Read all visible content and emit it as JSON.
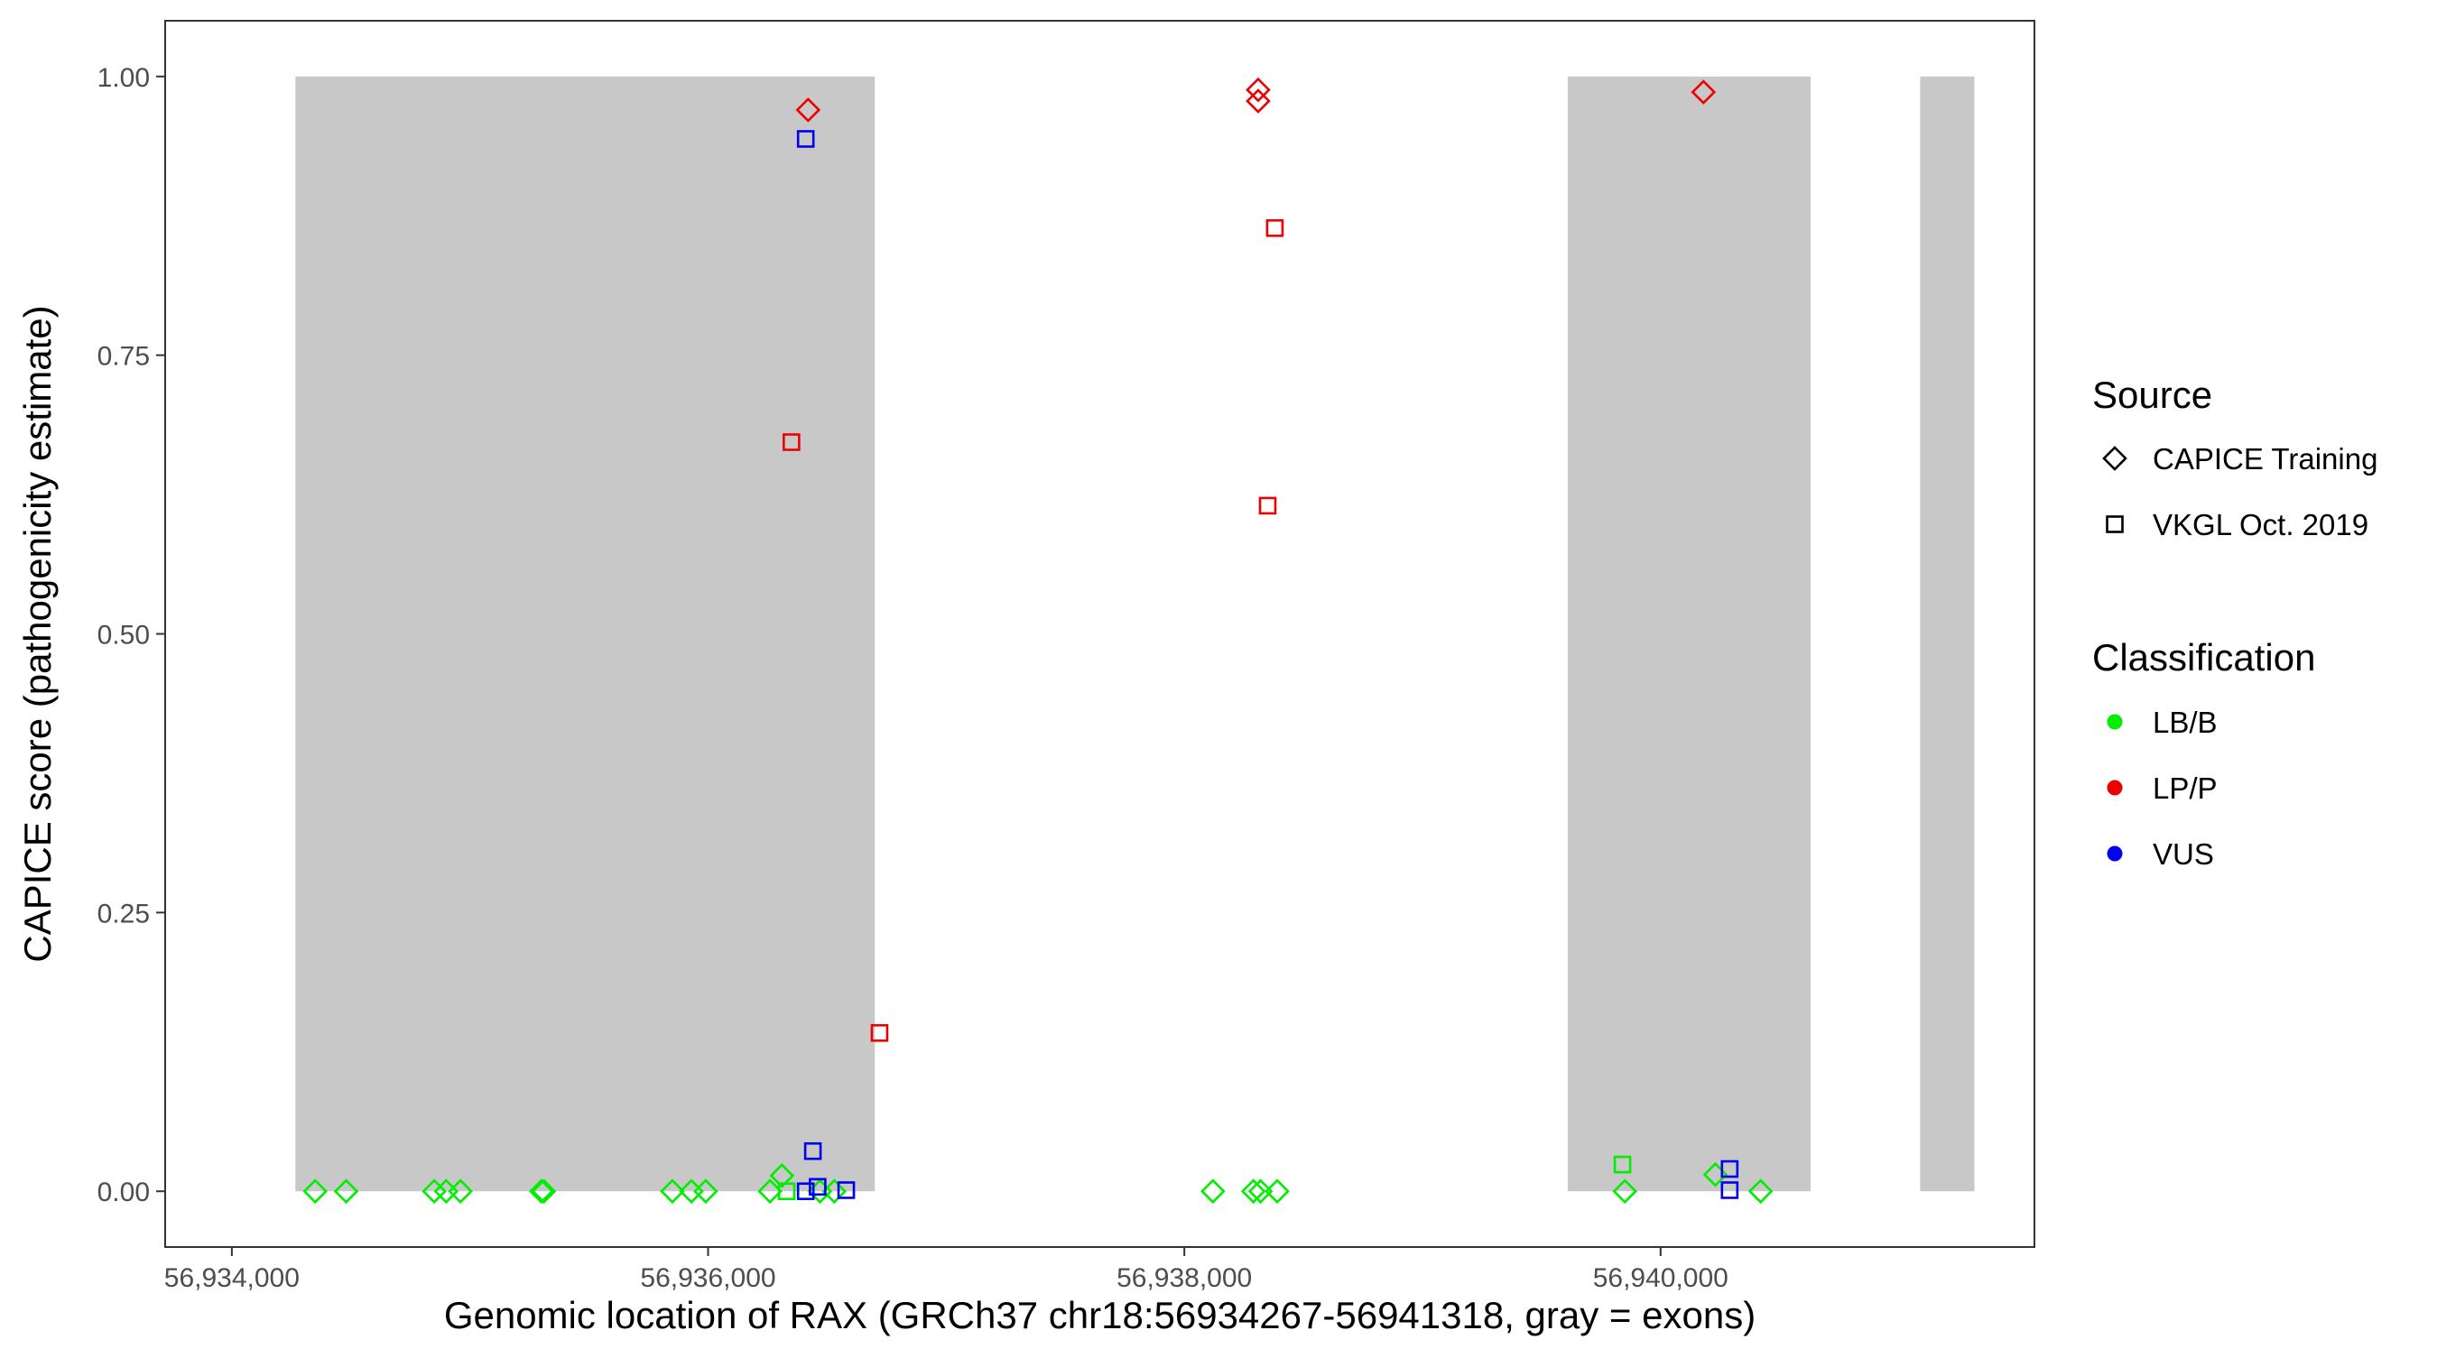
{
  "chart_data": {
    "type": "scatter",
    "xlabel": "Genomic location of RAX (GRCh37 chr18:56934267-56941318, gray = exons)",
    "ylabel": "CAPICE score (pathogenicity estimate)",
    "xlim": [
      56933720,
      56941570
    ],
    "ylim": [
      -0.05,
      1.05
    ],
    "x_ticks": [
      56934000,
      56936000,
      56938000,
      56940000
    ],
    "x_tick_labels": [
      "56,934,000",
      "56,936,000",
      "56,938,000",
      "56,940,000"
    ],
    "y_ticks": [
      0,
      0.25,
      0.5,
      0.75,
      1.0
    ],
    "y_tick_labels": [
      "0.00",
      "0.25",
      "0.50",
      "0.75",
      "1.00"
    ],
    "grid": false,
    "legend_placement": "right",
    "exons": [
      {
        "start": 56934267,
        "end": 56936700
      },
      {
        "start": 56939610,
        "end": 56940630
      },
      {
        "start": 56941090,
        "end": 56941318
      }
    ],
    "exon_color": "#c8c8c8",
    "legends": {
      "source": {
        "title": "Source",
        "entries": [
          {
            "label": "CAPICE Training",
            "shape": "diamond"
          },
          {
            "label": "VKGL Oct. 2019",
            "shape": "square"
          }
        ]
      },
      "classification": {
        "title": "Classification",
        "entries": [
          {
            "label": "LB/B",
            "color": "#00ee00"
          },
          {
            "label": "LP/P",
            "color": "#ee0000"
          },
          {
            "label": "VUS",
            "color": "#0000ee"
          }
        ]
      }
    },
    "points": [
      {
        "x": 56934350,
        "y": 0.0,
        "source": "CAPICE Training",
        "class": "LB/B"
      },
      {
        "x": 56934480,
        "y": 0.0,
        "source": "CAPICE Training",
        "class": "LB/B"
      },
      {
        "x": 56934850,
        "y": 0.0,
        "source": "CAPICE Training",
        "class": "LB/B"
      },
      {
        "x": 56934900,
        "y": 0.0,
        "source": "CAPICE Training",
        "class": "LB/B"
      },
      {
        "x": 56934960,
        "y": 0.0,
        "source": "CAPICE Training",
        "class": "LB/B"
      },
      {
        "x": 56935300,
        "y": 0.0,
        "source": "CAPICE Training",
        "class": "LB/B"
      },
      {
        "x": 56935310,
        "y": 0.0,
        "source": "CAPICE Training",
        "class": "LB/B"
      },
      {
        "x": 56935850,
        "y": 0.0,
        "source": "CAPICE Training",
        "class": "LB/B"
      },
      {
        "x": 56935930,
        "y": 0.0,
        "source": "CAPICE Training",
        "class": "LB/B"
      },
      {
        "x": 56935990,
        "y": 0.0,
        "source": "CAPICE Training",
        "class": "LB/B"
      },
      {
        "x": 56936260,
        "y": 0.0,
        "source": "CAPICE Training",
        "class": "LB/B"
      },
      {
        "x": 56936310,
        "y": 0.014,
        "source": "CAPICE Training",
        "class": "LB/B"
      },
      {
        "x": 56936470,
        "y": 0.0,
        "source": "CAPICE Training",
        "class": "LB/B"
      },
      {
        "x": 56936530,
        "y": 0.0,
        "source": "CAPICE Training",
        "class": "LB/B"
      },
      {
        "x": 56936330,
        "y": 0.0,
        "source": "VKGL Oct. 2019",
        "class": "LB/B"
      },
      {
        "x": 56936410,
        "y": 0.0,
        "source": "VKGL Oct. 2019",
        "class": "VUS"
      },
      {
        "x": 56936460,
        "y": 0.004,
        "source": "VKGL Oct. 2019",
        "class": "VUS"
      },
      {
        "x": 56936440,
        "y": 0.036,
        "source": "VKGL Oct. 2019",
        "class": "VUS"
      },
      {
        "x": 56936580,
        "y": 0.001,
        "source": "VKGL Oct. 2019",
        "class": "VUS"
      },
      {
        "x": 56936410,
        "y": 0.944,
        "source": "VKGL Oct. 2019",
        "class": "VUS"
      },
      {
        "x": 56936420,
        "y": 0.97,
        "source": "CAPICE Training",
        "class": "LP/P"
      },
      {
        "x": 56936350,
        "y": 0.672,
        "source": "VKGL Oct. 2019",
        "class": "LP/P"
      },
      {
        "x": 56936720,
        "y": 0.142,
        "source": "VKGL Oct. 2019",
        "class": "LP/P"
      },
      {
        "x": 56938120,
        "y": 0.0,
        "source": "CAPICE Training",
        "class": "LB/B"
      },
      {
        "x": 56938290,
        "y": 0.0,
        "source": "CAPICE Training",
        "class": "LB/B"
      },
      {
        "x": 56938320,
        "y": 0.0,
        "source": "CAPICE Training",
        "class": "LB/B"
      },
      {
        "x": 56938390,
        "y": 0.0,
        "source": "CAPICE Training",
        "class": "LB/B"
      },
      {
        "x": 56938310,
        "y": 0.988,
        "source": "CAPICE Training",
        "class": "LP/P"
      },
      {
        "x": 56938310,
        "y": 0.978,
        "source": "CAPICE Training",
        "class": "LP/P"
      },
      {
        "x": 56938380,
        "y": 0.864,
        "source": "VKGL Oct. 2019",
        "class": "LP/P"
      },
      {
        "x": 56938350,
        "y": 0.615,
        "source": "VKGL Oct. 2019",
        "class": "LP/P"
      },
      {
        "x": 56939850,
        "y": 0.0,
        "source": "CAPICE Training",
        "class": "LB/B"
      },
      {
        "x": 56939840,
        "y": 0.024,
        "source": "VKGL Oct. 2019",
        "class": "LB/B"
      },
      {
        "x": 56940230,
        "y": 0.015,
        "source": "CAPICE Training",
        "class": "LB/B"
      },
      {
        "x": 56940420,
        "y": 0.0,
        "source": "CAPICE Training",
        "class": "LB/B"
      },
      {
        "x": 56940290,
        "y": 0.02,
        "source": "VKGL Oct. 2019",
        "class": "VUS"
      },
      {
        "x": 56940290,
        "y": 0.001,
        "source": "VKGL Oct. 2019",
        "class": "VUS"
      },
      {
        "x": 56940180,
        "y": 0.986,
        "source": "CAPICE Training",
        "class": "LP/P"
      }
    ]
  }
}
